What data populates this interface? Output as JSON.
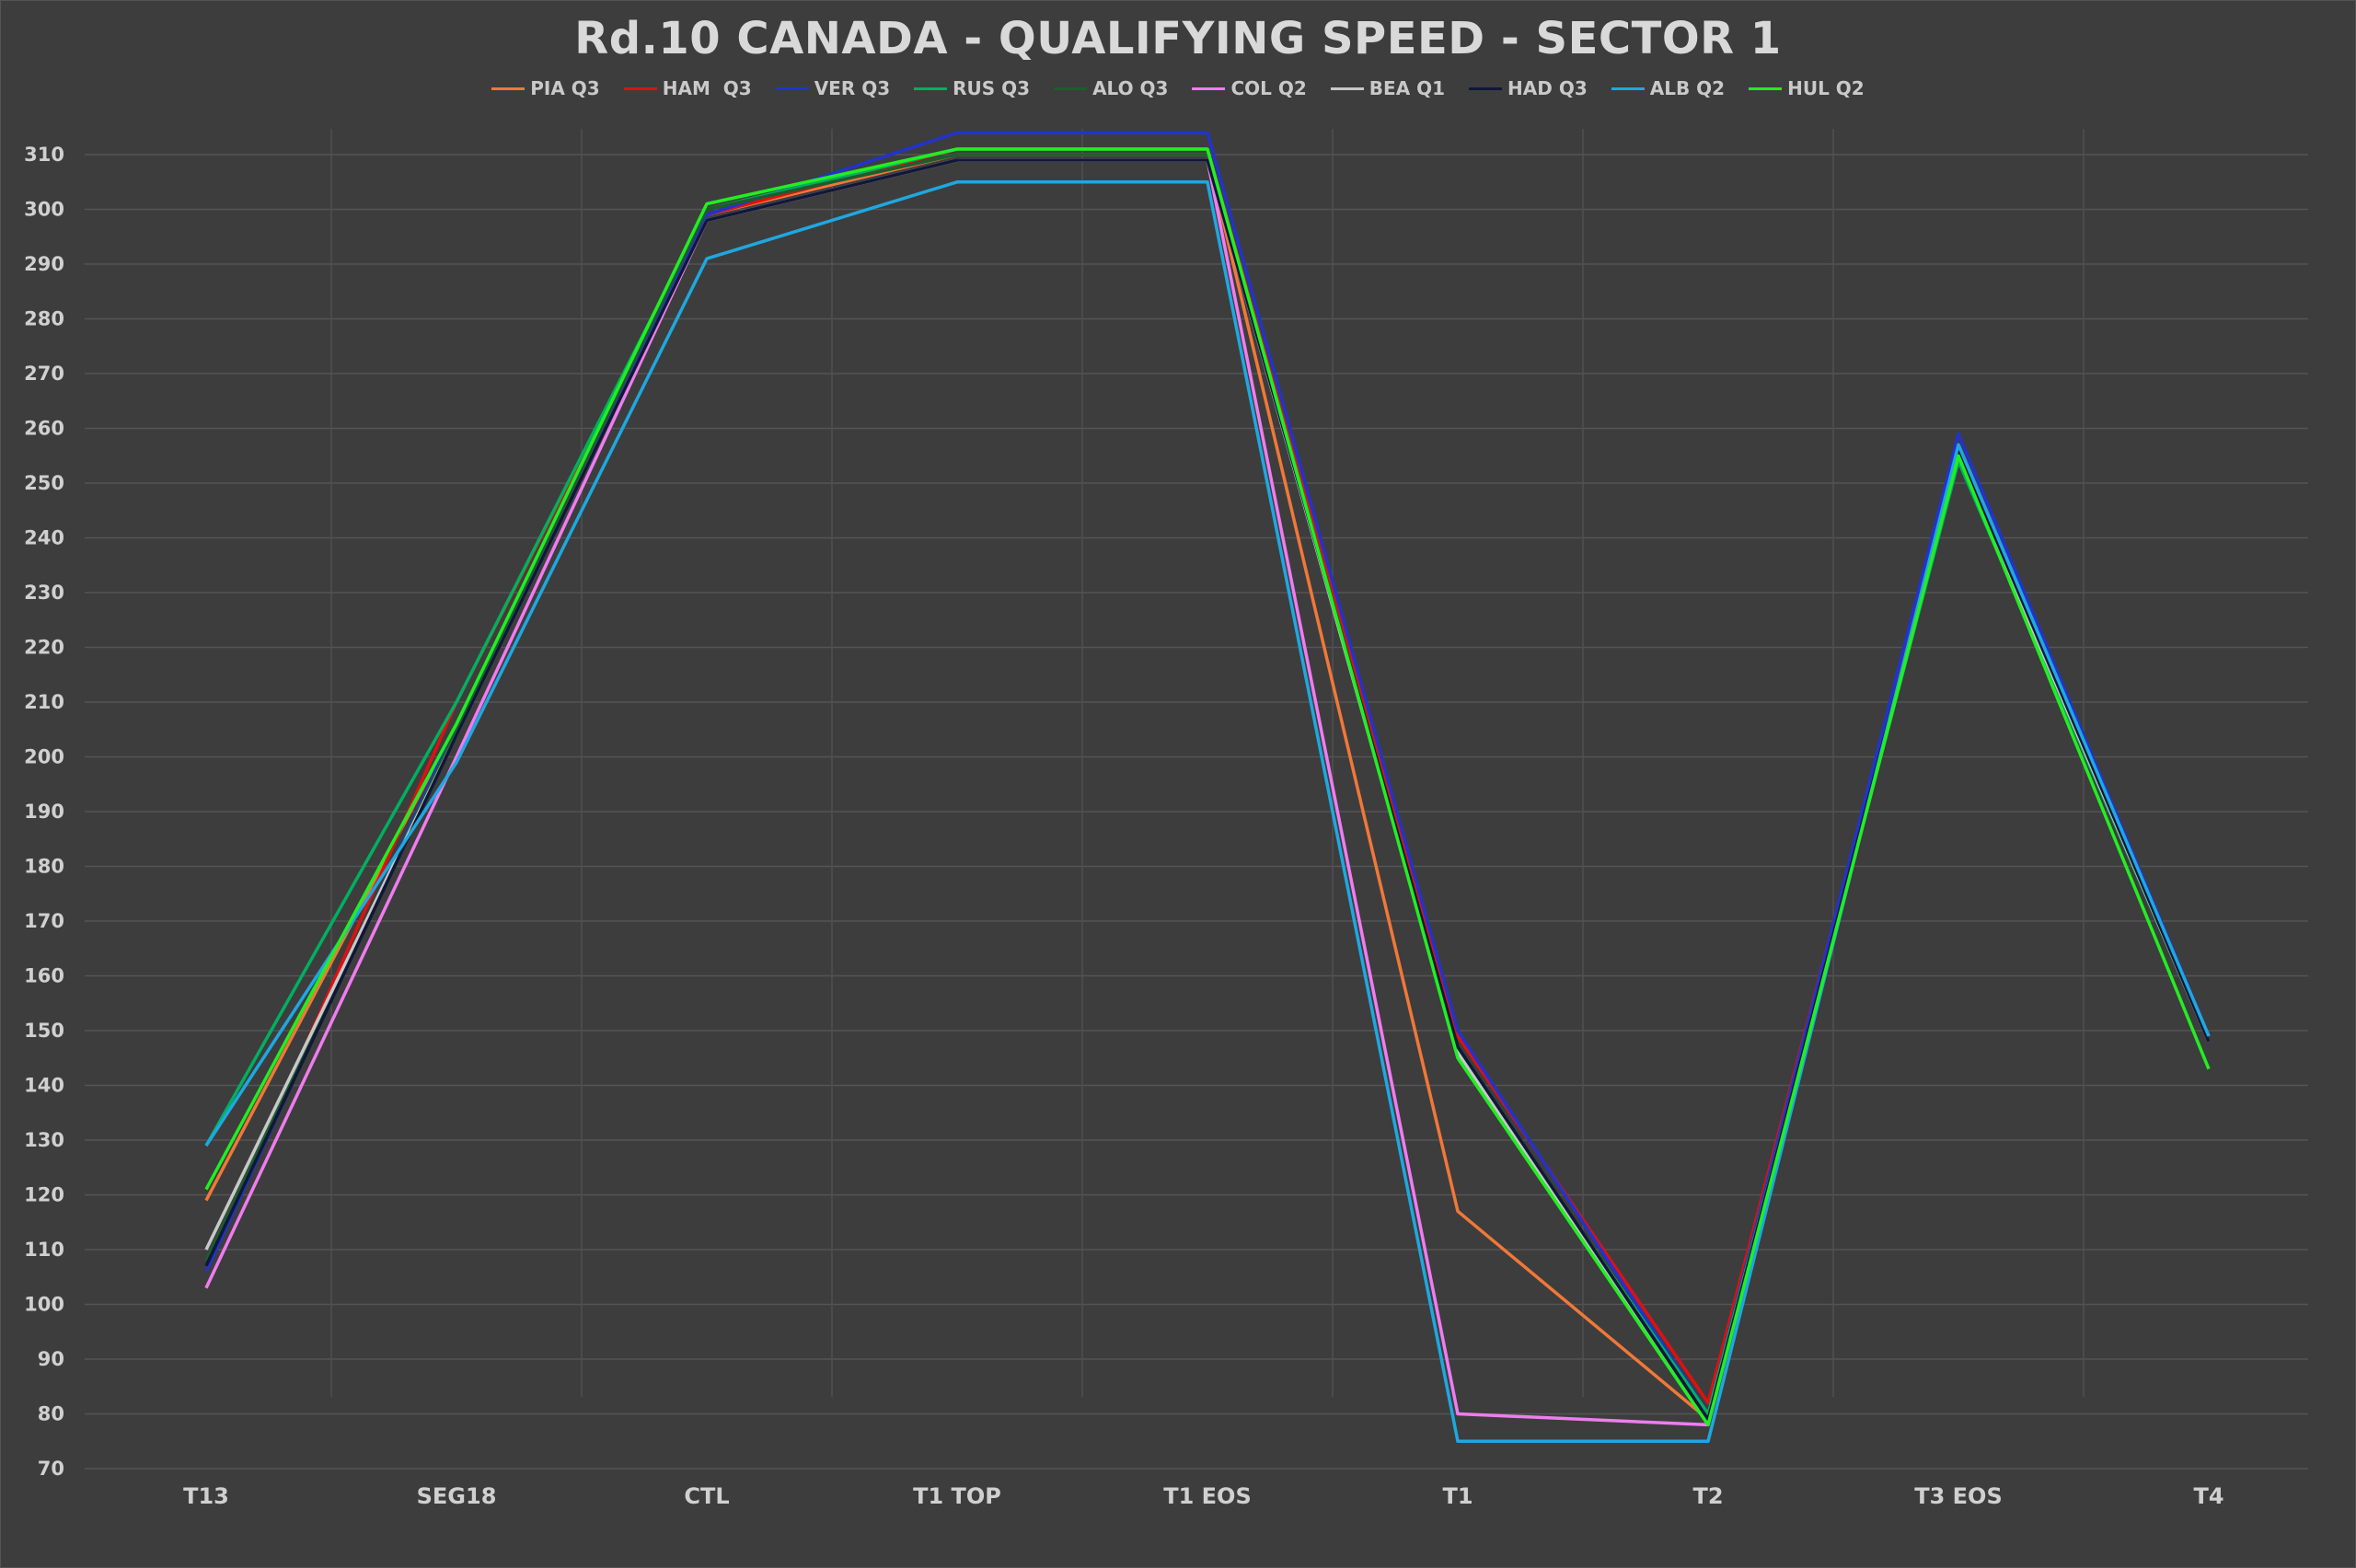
{
  "chart_data": {
    "type": "line",
    "title": "Rd.10 CANADA - QUALIFYING SPEED - SECTOR 1",
    "xlabel": "",
    "ylabel": "",
    "categories": [
      "T13",
      "SEG18",
      "CTL",
      "T1 TOP",
      "T1 EOS",
      "T1",
      "T2",
      "T3 EOS",
      "T4"
    ],
    "ylim": [
      70,
      310
    ],
    "yticks": [
      70,
      80,
      90,
      100,
      110,
      120,
      130,
      140,
      150,
      160,
      170,
      180,
      190,
      200,
      210,
      220,
      230,
      240,
      250,
      260,
      270,
      280,
      290,
      300,
      310
    ],
    "grid": true,
    "legend_position": "top-center",
    "series": [
      {
        "name": "PIA Q3",
        "color": "#f07838",
        "values": [
          119,
          206,
          299,
          310,
          310,
          117,
          79,
          257,
          149
        ]
      },
      {
        "name": "HAM  Q3",
        "color": "#e01010",
        "values": [
          106,
          210,
          299,
          311,
          311,
          149,
          82,
          257,
          148
        ]
      },
      {
        "name": "VER Q3",
        "color": "#2233cc",
        "values": [
          106,
          206,
          299,
          314,
          314,
          150,
          80,
          259,
          149
        ]
      },
      {
        "name": "RUS Q3",
        "color": "#00b060",
        "values": [
          129,
          210,
          300,
          311,
          311,
          146,
          80,
          254,
          148
        ]
      },
      {
        "name": "ALO Q3",
        "color": "#1e5c2e",
        "values": [
          108,
          205,
          300,
          310,
          310,
          147,
          79,
          256,
          148
        ]
      },
      {
        "name": "COL Q2",
        "color": "#f07cf0",
        "values": [
          103,
          200,
          298,
          309,
          309,
          80,
          78,
          256,
          149
        ]
      },
      {
        "name": "BEA Q1",
        "color": "#c8c8c8",
        "values": [
          110,
          204,
          298,
          309,
          309,
          146,
          79,
          255,
          148
        ]
      },
      {
        "name": "HAD Q3",
        "color": "#101838",
        "values": [
          107,
          204,
          298,
          309,
          309,
          147,
          79,
          256,
          148
        ]
      },
      {
        "name": "ALB Q2",
        "color": "#1ea8e0",
        "values": [
          129,
          199,
          291,
          305,
          305,
          75,
          75,
          257,
          149
        ]
      },
      {
        "name": "HUL Q2",
        "color": "#22ee22",
        "values": [
          121,
          206,
          301,
          311,
          311,
          145,
          78,
          255,
          143
        ]
      }
    ]
  }
}
